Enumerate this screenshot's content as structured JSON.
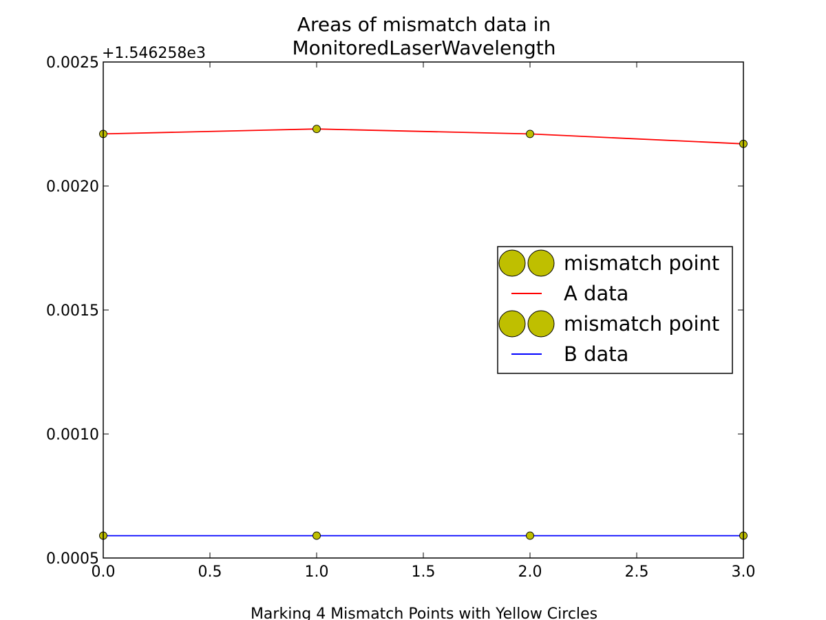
{
  "chart_data": {
    "type": "line",
    "title_lines": [
      "Areas of mismatch data in",
      "MonitoredLaserWavelength"
    ],
    "xlabel": "Marking 4 Mismatch Points with Yellow Circles",
    "ylabel": "",
    "y_offset_label": "+1.546258e3",
    "xlim": [
      0.0,
      3.0
    ],
    "ylim": [
      0.0005,
      0.0025
    ],
    "x_ticks": [
      0.0,
      0.5,
      1.0,
      1.5,
      2.0,
      2.5,
      3.0
    ],
    "x_tick_labels": [
      "0.0",
      "0.5",
      "1.0",
      "1.5",
      "2.0",
      "2.5",
      "3.0"
    ],
    "y_ticks": [
      0.0005,
      0.001,
      0.0015,
      0.002,
      0.0025
    ],
    "y_tick_labels": [
      "0.0005",
      "0.0010",
      "0.0015",
      "0.0020",
      "0.0025"
    ],
    "grid": false,
    "legend_position": "center-right",
    "x": [
      0,
      1,
      2,
      3
    ],
    "series": [
      {
        "name": "A data",
        "values": [
          0.00221,
          0.00223,
          0.00221,
          0.00217
        ],
        "color": "#ff0000"
      },
      {
        "name": "B data",
        "values": [
          0.00059,
          0.00059,
          0.00059,
          0.00059
        ],
        "color": "#0000ff"
      }
    ],
    "mismatch_marker_color": "#bfbf00",
    "legend": [
      {
        "label": "mismatch point",
        "kind": "marker"
      },
      {
        "label": "A data",
        "kind": "line",
        "color": "#ff0000"
      },
      {
        "label": "mismatch point",
        "kind": "marker"
      },
      {
        "label": "B data",
        "kind": "line",
        "color": "#0000ff"
      }
    ]
  }
}
